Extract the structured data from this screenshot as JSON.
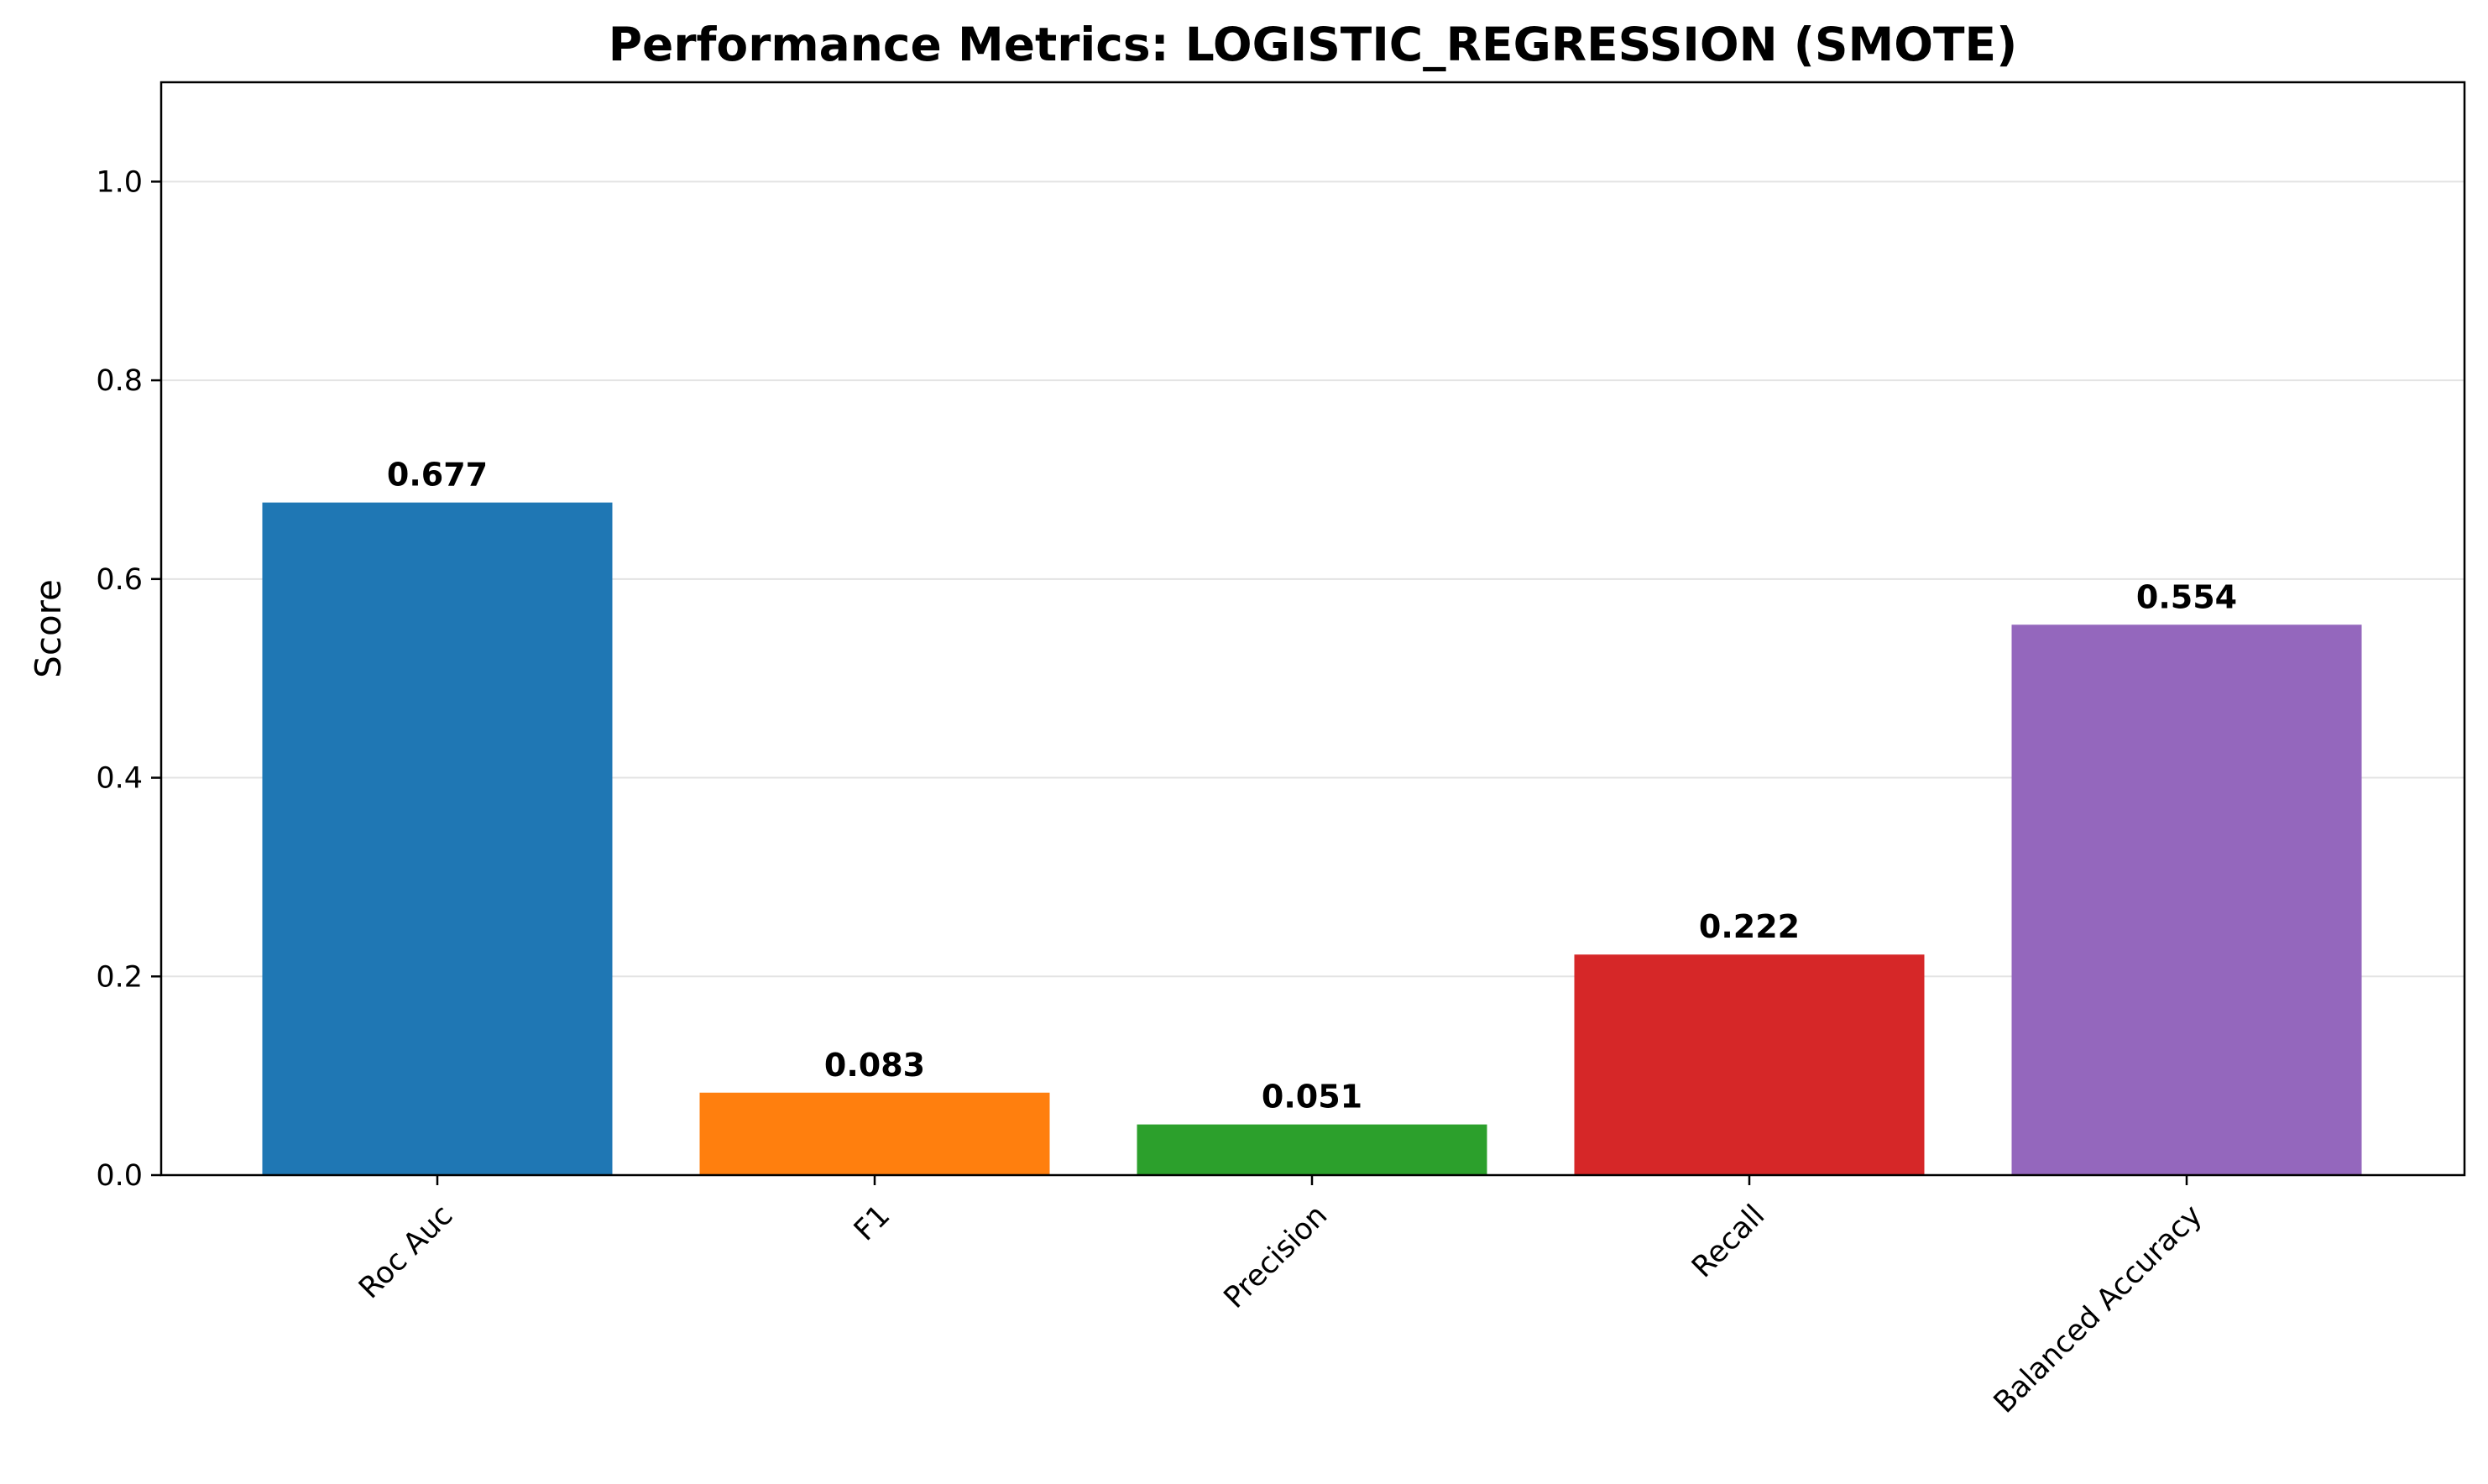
{
  "chart_data": {
    "type": "bar",
    "title": "Performance Metrics: LOGISTIC_REGRESSION (SMOTE)",
    "xlabel": "",
    "ylabel": "Score",
    "ylim": [
      0,
      1.1
    ],
    "yticks": [
      0.0,
      0.2,
      0.4,
      0.6,
      0.8,
      1.0
    ],
    "ytick_labels": [
      "0.0",
      "0.2",
      "0.4",
      "0.6",
      "0.8",
      "1.0"
    ],
    "categories": [
      "Roc Auc",
      "F1",
      "Precision",
      "Recall",
      "Balanced Accuracy"
    ],
    "values": [
      0.677,
      0.083,
      0.051,
      0.222,
      0.554
    ],
    "value_labels": [
      "0.677",
      "0.083",
      "0.051",
      "0.222",
      "0.554"
    ],
    "colors": [
      "#1f77b4",
      "#ff7f0e",
      "#2ca02c",
      "#d62728",
      "#9467bd"
    ],
    "grid": "y",
    "legend": "none",
    "xtick_rotation": 45
  }
}
